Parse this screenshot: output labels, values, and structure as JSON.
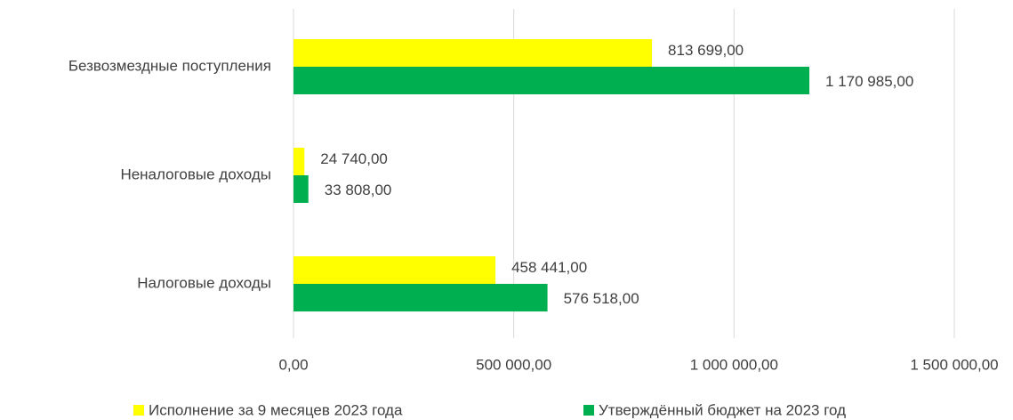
{
  "chart_data": {
    "type": "hbar",
    "categories": [
      "Безвозмездные поступления",
      "Неналоговые доходы",
      "Налоговые доходы"
    ],
    "series": [
      {
        "name": "Исполнение за 9 месяцев 2023 года",
        "color": "#ffff00",
        "values": [
          813699,
          24740,
          458441
        ],
        "value_labels": [
          "813 699,00",
          "24 740,00",
          "458 441,00"
        ]
      },
      {
        "name": "Утверждённый бюджет на 2023 год",
        "color": "#00b050",
        "values": [
          1170985,
          33808,
          576518
        ],
        "value_labels": [
          "1 170 985,00",
          "33 808,00",
          "576 518,00"
        ]
      }
    ],
    "xlim": [
      0,
      1500000
    ],
    "xticks": [
      {
        "value": 0,
        "label": "0,00"
      },
      {
        "value": 500000,
        "label": "500 000,00"
      },
      {
        "value": 1000000,
        "label": "1 000 000,00"
      },
      {
        "value": 1500000,
        "label": "1 500 000,00"
      }
    ],
    "grid": true,
    "legend": "bottom"
  }
}
